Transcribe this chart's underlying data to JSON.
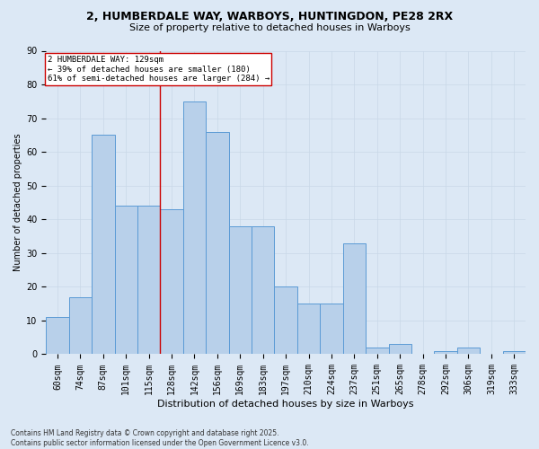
{
  "title1": "2, HUMBERDALE WAY, WARBOYS, HUNTINGDON, PE28 2RX",
  "title2": "Size of property relative to detached houses in Warboys",
  "xlabel": "Distribution of detached houses by size in Warboys",
  "ylabel": "Number of detached properties",
  "categories": [
    "60sqm",
    "74sqm",
    "87sqm",
    "101sqm",
    "115sqm",
    "128sqm",
    "142sqm",
    "156sqm",
    "169sqm",
    "183sqm",
    "197sqm",
    "210sqm",
    "224sqm",
    "237sqm",
    "251sqm",
    "265sqm",
    "278sqm",
    "292sqm",
    "306sqm",
    "319sqm",
    "333sqm"
  ],
  "values": [
    11,
    17,
    65,
    44,
    44,
    43,
    75,
    66,
    38,
    38,
    20,
    15,
    15,
    33,
    2,
    3,
    0,
    1,
    2,
    0,
    1
  ],
  "bar_color": "#b8d0ea",
  "bar_edge_color": "#5b9bd5",
  "vline_index": 5,
  "marker_label": "2 HUMBERDALE WAY: 129sqm",
  "annotation_line1": "← 39% of detached houses are smaller (180)",
  "annotation_line2": "61% of semi-detached houses are larger (284) →",
  "vline_color": "#cc0000",
  "annotation_box_color": "#ffffff",
  "annotation_box_edge": "#cc0000",
  "grid_color": "#c8d8e8",
  "background_color": "#dce8f5",
  "footer_line1": "Contains HM Land Registry data © Crown copyright and database right 2025.",
  "footer_line2": "Contains public sector information licensed under the Open Government Licence v3.0.",
  "ylim": [
    0,
    90
  ],
  "yticks": [
    0,
    10,
    20,
    30,
    40,
    50,
    60,
    70,
    80,
    90
  ],
  "title1_fontsize": 9,
  "title2_fontsize": 8,
  "xlabel_fontsize": 8,
  "ylabel_fontsize": 7,
  "tick_fontsize": 7,
  "annotation_fontsize": 6.5,
  "footer_fontsize": 5.5
}
